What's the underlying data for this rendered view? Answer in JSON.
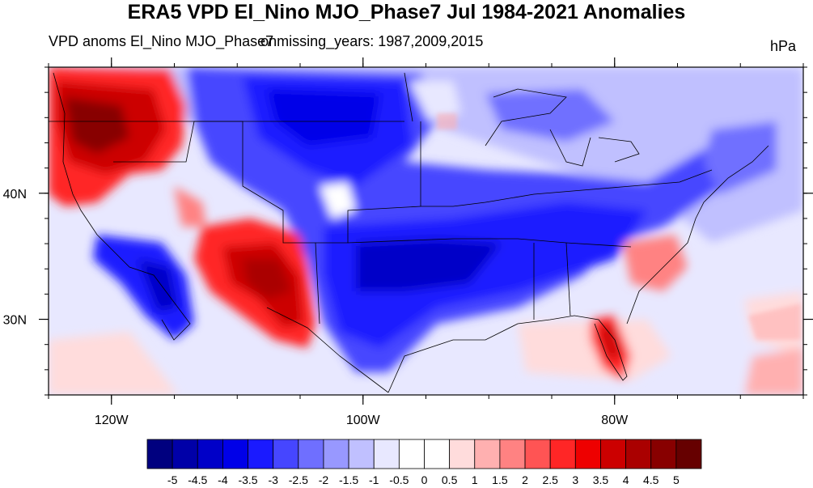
{
  "title": "ERA5 VPD El_Nino MJO_Phase7 Jul 1984-2021 Anomalies",
  "subtitle_left": "VPD anoms El_Nino MJO_Phase7",
  "subtitle_mid": "onmissing_years: 1987,2009,2015",
  "units": "hPa",
  "map": {
    "projection": "lat-lon",
    "region": "Continental United States",
    "lon_range": [
      -125,
      -65
    ],
    "lat_range": [
      24,
      50
    ],
    "lat_ticks": [
      {
        "value": 40,
        "label": "40N"
      },
      {
        "value": 30,
        "label": "30N"
      }
    ],
    "lon_ticks": [
      {
        "value": -120,
        "label": "120W"
      },
      {
        "value": -100,
        "label": "100W"
      },
      {
        "value": -80,
        "label": "80W"
      }
    ]
  },
  "colorbar": {
    "levels": [
      "-5",
      "-4.5",
      "-4",
      "-3.5",
      "-3",
      "-2.5",
      "-2",
      "-1.5",
      "-1",
      "-0.5",
      "0",
      "0.5",
      "1",
      "1.5",
      "2",
      "2.5",
      "3",
      "3.5",
      "4",
      "4.5",
      "5"
    ],
    "colors": [
      "#00007f",
      "#0000a8",
      "#0000c8",
      "#0000e8",
      "#1a1aff",
      "#4646ff",
      "#6f6fff",
      "#9898ff",
      "#c0c0ff",
      "#e8e8ff",
      "#ffffff",
      "#ffffff",
      "#ffdcdc",
      "#ffb0b0",
      "#ff8282",
      "#ff5454",
      "#ff2626",
      "#ee0000",
      "#cc0000",
      "#aa0000",
      "#880000",
      "#660000"
    ]
  },
  "anomaly_regions": [
    {
      "name": "Pacific Northwest",
      "sign": "positive",
      "level": 4.5
    },
    {
      "name": "Southwest / New Mexico",
      "sign": "positive",
      "level": 3.5
    },
    {
      "name": "Florida peninsula",
      "sign": "positive",
      "level": 3
    },
    {
      "name": "Northern Plains",
      "sign": "negative",
      "level": -4.5
    },
    {
      "name": "Southern Plains",
      "sign": "negative",
      "level": -4.5
    },
    {
      "name": "Ohio Valley",
      "sign": "negative",
      "level": -4
    },
    {
      "name": "Baja California coast",
      "sign": "negative",
      "level": -4
    },
    {
      "name": "Great Lakes",
      "sign": "negative",
      "level": -2
    },
    {
      "name": "Atlantic offshore",
      "sign": "positive",
      "level": 1
    }
  ]
}
